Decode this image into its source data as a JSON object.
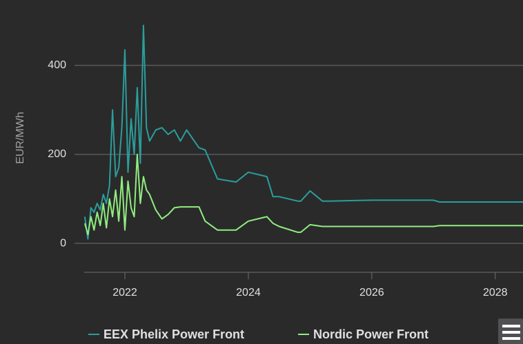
{
  "chart_data": {
    "type": "line",
    "y_label": "EUR/MWh",
    "x": [
      2021.35,
      2021.4,
      2021.45,
      2021.5,
      2021.55,
      2021.6,
      2021.65,
      2021.7,
      2021.75,
      2021.8,
      2021.85,
      2021.9,
      2021.95,
      2022.0,
      2022.05,
      2022.1,
      2022.15,
      2022.2,
      2022.25,
      2022.3,
      2022.35,
      2022.4,
      2022.5,
      2022.6,
      2022.7,
      2022.8,
      2022.9,
      2023.0,
      2023.1,
      2023.2,
      2023.3,
      2023.5,
      2023.8,
      2024.0,
      2024.3,
      2024.4,
      2024.5,
      2024.8,
      2024.85,
      2025.0,
      2025.2,
      2025.3,
      2026.0,
      2027.0,
      2027.1,
      2028.45
    ],
    "series": [
      {
        "name": "EEX Phelix Power Front",
        "color": "#2b9e9b",
        "values": [
          60,
          10,
          80,
          70,
          90,
          75,
          110,
          90,
          130,
          300,
          150,
          170,
          260,
          435,
          160,
          280,
          200,
          350,
          180,
          490,
          260,
          230,
          255,
          260,
          245,
          255,
          230,
          255,
          235,
          215,
          210,
          145,
          138,
          160,
          150,
          105,
          105,
          95,
          95,
          118,
          95,
          95,
          97,
          97,
          93,
          93
        ]
      },
      {
        "name": "Nordic Power Front",
        "color": "#90ee7e",
        "values": [
          45,
          20,
          60,
          30,
          70,
          40,
          90,
          35,
          100,
          60,
          120,
          50,
          150,
          30,
          140,
          80,
          60,
          200,
          90,
          150,
          120,
          110,
          75,
          55,
          65,
          80,
          82,
          82,
          82,
          82,
          50,
          30,
          30,
          50,
          60,
          45,
          38,
          25,
          25,
          42,
          38,
          38,
          38,
          38,
          40,
          40
        ]
      }
    ],
    "xlim": [
      2021.34,
      2028.45
    ],
    "xticks": [
      2022,
      2024,
      2026,
      2028
    ],
    "ylim": [
      -65,
      547
    ],
    "yticks": [
      0,
      200,
      400
    ],
    "grid": true
  }
}
